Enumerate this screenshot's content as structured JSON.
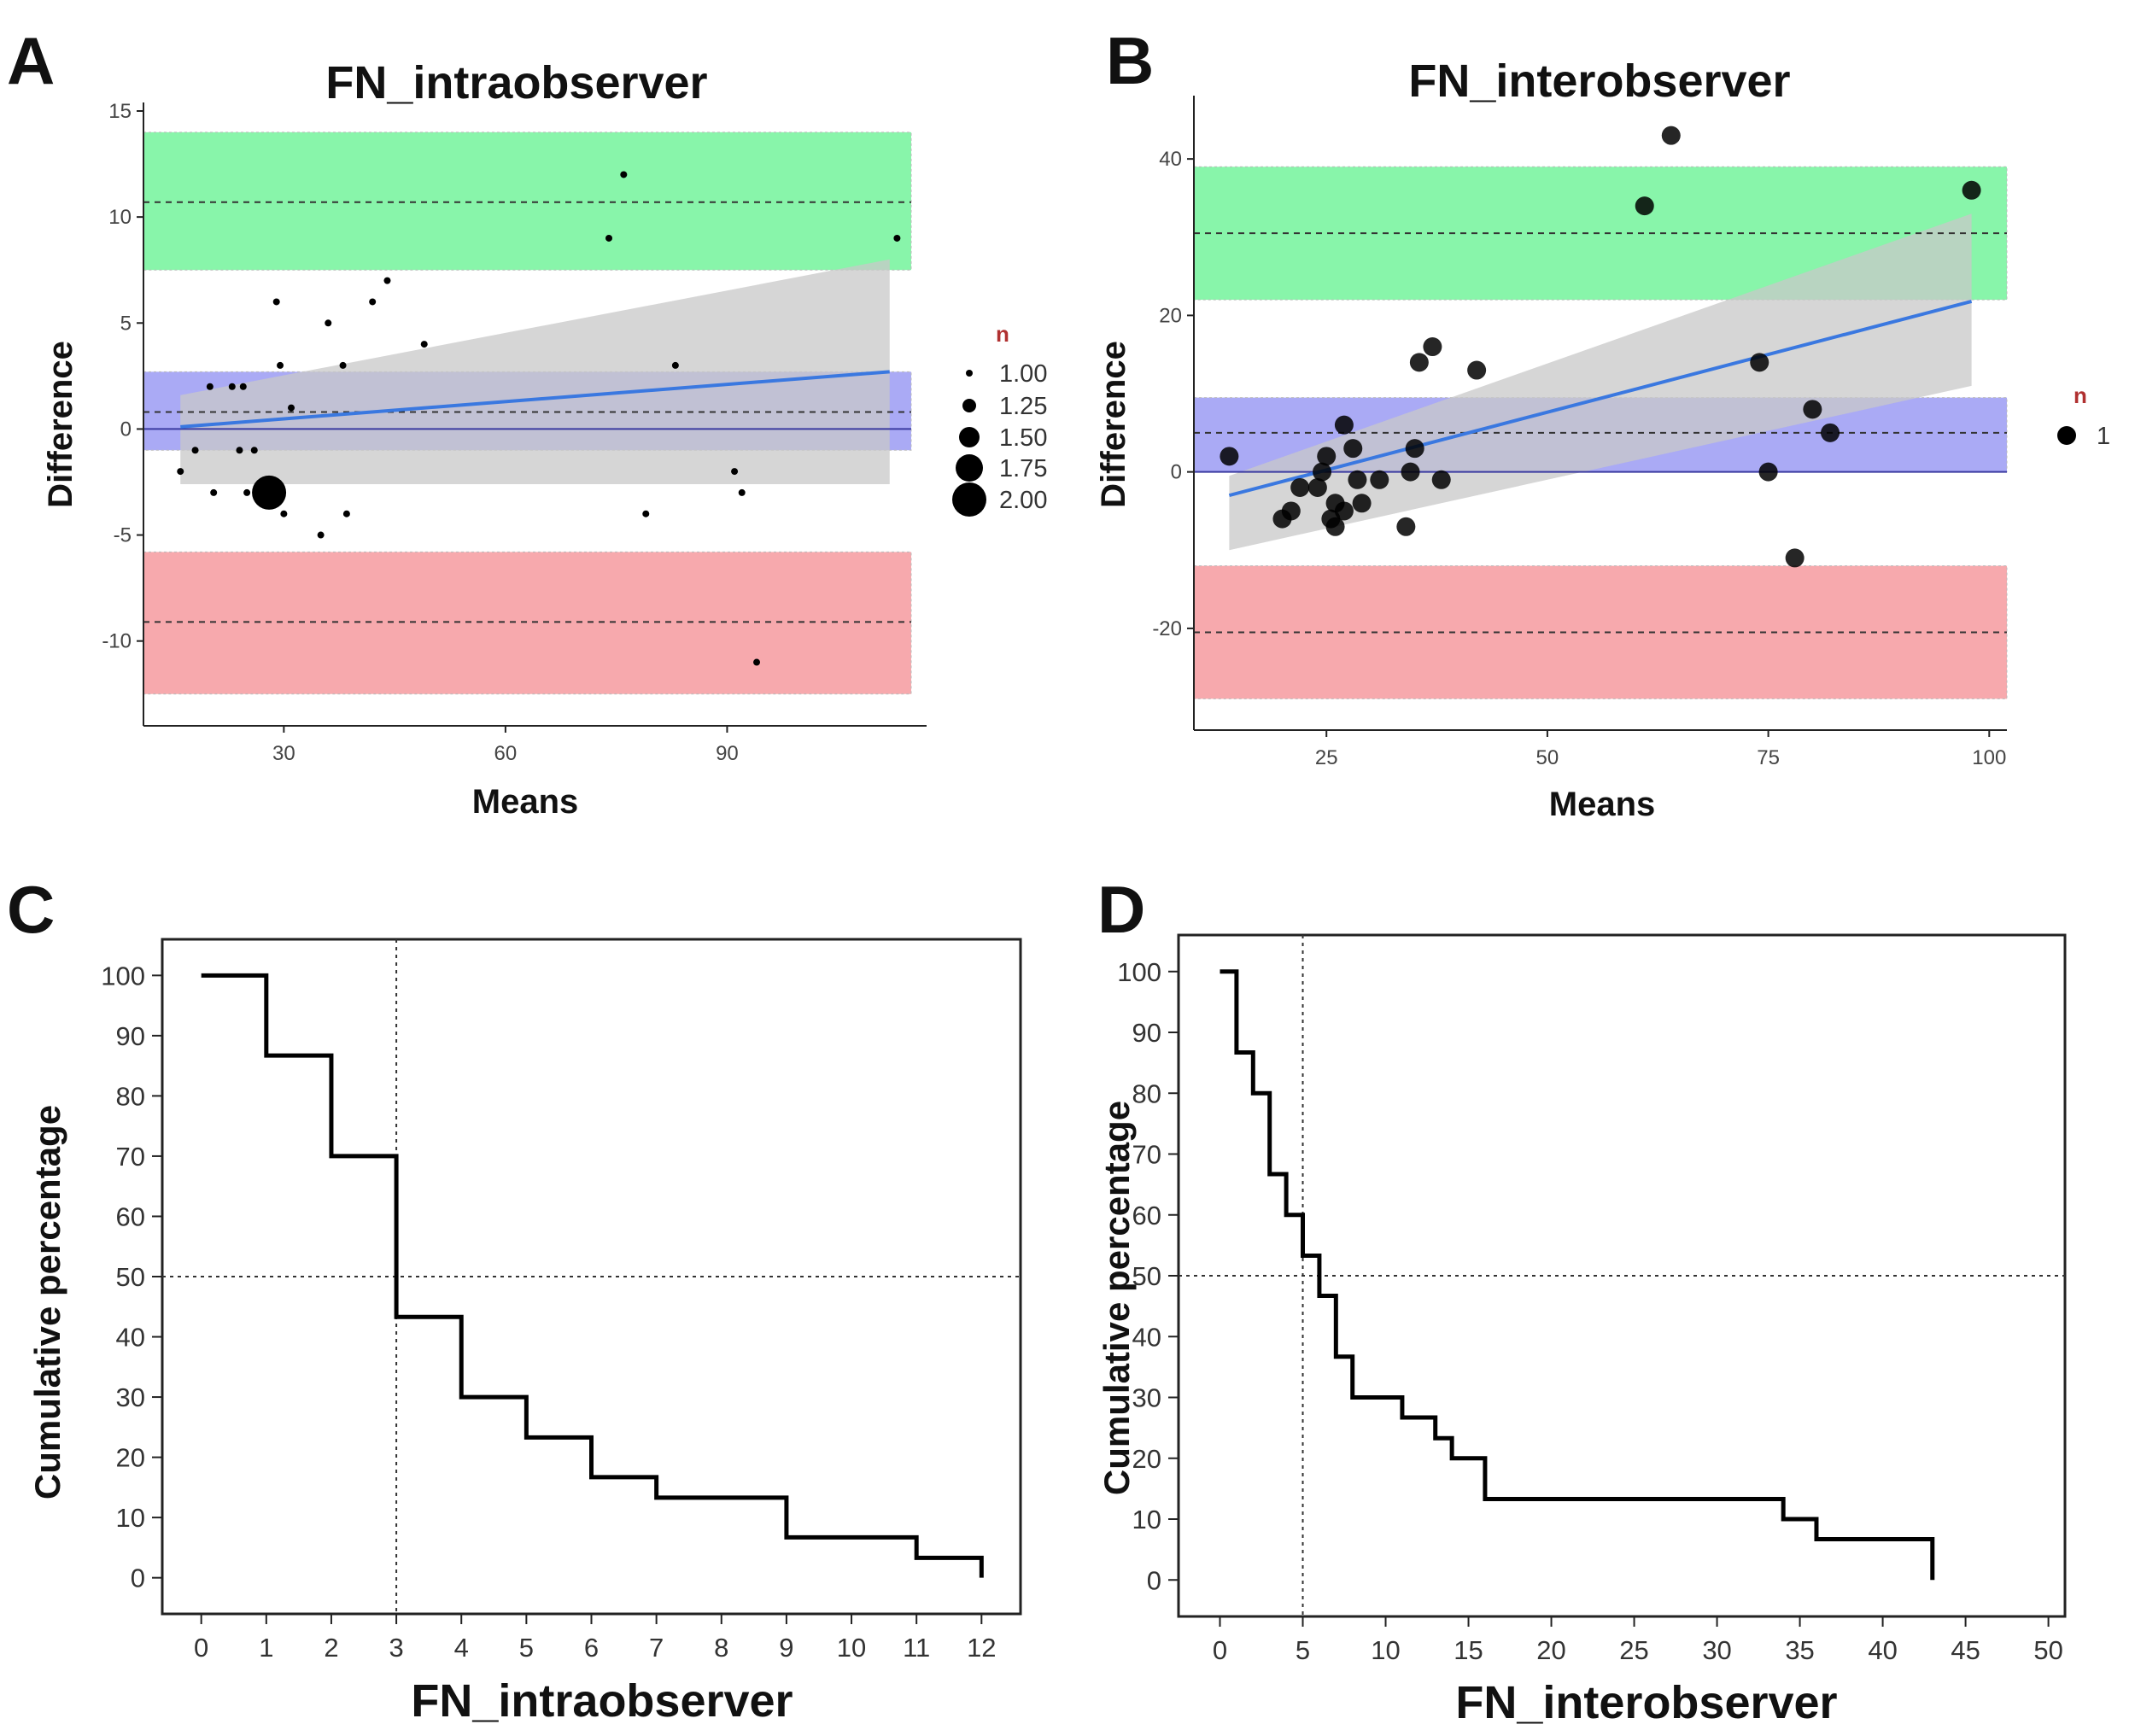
{
  "colors": {
    "upper_band": "#88f5aa",
    "mean_band": "#aaaaf5",
    "lower_band": "#f7a9ad",
    "regression": "#3a78e0",
    "ci": "#c8c8c8",
    "point": "#000000"
  },
  "chart_data": [
    {
      "panel": "A",
      "type": "scatter",
      "title": "FN_intraobserver",
      "xlabel": "Means",
      "ylabel": "Difference",
      "xlim": [
        11,
        117
      ],
      "ylim": [
        -14,
        15
      ],
      "x_ticks": [
        30,
        60,
        90
      ],
      "y_ticks": [
        15,
        10,
        5,
        0,
        -5,
        -10
      ],
      "bands": {
        "upper": {
          "low": 7.5,
          "high": 14,
          "line": 10.7
        },
        "mean": {
          "low": -1,
          "high": 2.7,
          "line": 0.8
        },
        "lower": {
          "low": -12.5,
          "high": -5.8,
          "line": -9.1
        }
      },
      "zero_line": 0,
      "regression": {
        "x": [
          16,
          112
        ],
        "y": [
          0.1,
          2.7
        ]
      },
      "ci_band": {
        "x": [
          16,
          112
        ],
        "upper": [
          1.6,
          8.0
        ],
        "lower": [
          -2.6,
          -2.6
        ]
      },
      "points": [
        {
          "x": 16,
          "y": -2,
          "n": 1
        },
        {
          "x": 18,
          "y": -1,
          "n": 1
        },
        {
          "x": 20,
          "y": 2,
          "n": 1
        },
        {
          "x": 20.5,
          "y": -3,
          "n": 1
        },
        {
          "x": 23,
          "y": 2,
          "n": 1
        },
        {
          "x": 24,
          "y": -1,
          "n": 1
        },
        {
          "x": 24.5,
          "y": 2,
          "n": 1
        },
        {
          "x": 25,
          "y": -3,
          "n": 1
        },
        {
          "x": 26,
          "y": -1,
          "n": 1
        },
        {
          "x": 28,
          "y": -3,
          "n": 2
        },
        {
          "x": 29,
          "y": 6,
          "n": 1
        },
        {
          "x": 29.5,
          "y": 3,
          "n": 1
        },
        {
          "x": 30,
          "y": -4,
          "n": 1
        },
        {
          "x": 31,
          "y": 1,
          "n": 1
        },
        {
          "x": 35,
          "y": -5,
          "n": 1
        },
        {
          "x": 36,
          "y": 5,
          "n": 1
        },
        {
          "x": 38,
          "y": 3,
          "n": 1
        },
        {
          "x": 38.5,
          "y": -4,
          "n": 1
        },
        {
          "x": 42,
          "y": 6,
          "n": 1
        },
        {
          "x": 44,
          "y": 7,
          "n": 1
        },
        {
          "x": 49,
          "y": 4,
          "n": 1
        },
        {
          "x": 74,
          "y": 9,
          "n": 1
        },
        {
          "x": 76,
          "y": 12,
          "n": 1
        },
        {
          "x": 79,
          "y": -4,
          "n": 1
        },
        {
          "x": 83,
          "y": 3,
          "n": 1
        },
        {
          "x": 91,
          "y": -2,
          "n": 1
        },
        {
          "x": 92,
          "y": -3,
          "n": 1
        },
        {
          "x": 94,
          "y": -11,
          "n": 1
        },
        {
          "x": 113,
          "y": 9,
          "n": 1
        }
      ],
      "legend": {
        "title": "n",
        "entries": [
          {
            "label": "1.00",
            "n": 1.0
          },
          {
            "label": "1.25",
            "n": 1.25
          },
          {
            "label": "1.50",
            "n": 1.5
          },
          {
            "label": "1.75",
            "n": 1.75
          },
          {
            "label": "2.00",
            "n": 2.0
          }
        ]
      }
    },
    {
      "panel": "B",
      "type": "scatter",
      "title": "FN_interobserver",
      "xlabel": "Means",
      "ylabel": "Difference",
      "xlim": [
        10,
        102
      ],
      "ylim": [
        -33,
        47
      ],
      "x_ticks": [
        25,
        50,
        75,
        100
      ],
      "y_ticks": [
        40,
        20,
        0,
        -20
      ],
      "bands": {
        "upper": {
          "low": 22,
          "high": 39,
          "line": 30.5
        },
        "mean": {
          "low": 0,
          "high": 9.5,
          "line": 5
        },
        "lower": {
          "low": -29,
          "high": -12,
          "line": -20.5
        }
      },
      "zero_line": 0,
      "regression": {
        "x": [
          14,
          98
        ],
        "y": [
          -3,
          21.8
        ]
      },
      "ci_band": {
        "x": [
          14,
          98
        ],
        "upper": [
          -0.5,
          33
        ],
        "lower": [
          -10,
          11
        ]
      },
      "points": [
        {
          "x": 14,
          "y": 2
        },
        {
          "x": 20,
          "y": -6
        },
        {
          "x": 21,
          "y": -5
        },
        {
          "x": 22,
          "y": -2
        },
        {
          "x": 24,
          "y": -2
        },
        {
          "x": 24.5,
          "y": 0
        },
        {
          "x": 25,
          "y": 2
        },
        {
          "x": 25.5,
          "y": -6
        },
        {
          "x": 26,
          "y": -7
        },
        {
          "x": 26,
          "y": -4
        },
        {
          "x": 27,
          "y": -5
        },
        {
          "x": 27,
          "y": 6
        },
        {
          "x": 28,
          "y": 3
        },
        {
          "x": 28.5,
          "y": -1
        },
        {
          "x": 29,
          "y": -4
        },
        {
          "x": 31,
          "y": -1
        },
        {
          "x": 34,
          "y": -7
        },
        {
          "x": 34.5,
          "y": 0
        },
        {
          "x": 35,
          "y": 3
        },
        {
          "x": 35.5,
          "y": 14
        },
        {
          "x": 37,
          "y": 16
        },
        {
          "x": 38,
          "y": -1
        },
        {
          "x": 42,
          "y": 13
        },
        {
          "x": 61,
          "y": 34
        },
        {
          "x": 64,
          "y": 43
        },
        {
          "x": 74,
          "y": 14
        },
        {
          "x": 75,
          "y": 0
        },
        {
          "x": 78,
          "y": -11
        },
        {
          "x": 80,
          "y": 8
        },
        {
          "x": 82,
          "y": 5
        },
        {
          "x": 98,
          "y": 36
        }
      ],
      "legend": {
        "title": "n",
        "entries": [
          {
            "label": "1",
            "n": 1
          }
        ]
      }
    },
    {
      "panel": "C",
      "type": "line",
      "step": true,
      "xlabel": "FN_intraobserver",
      "ylabel": "Cumulative percentage",
      "xlim": [
        -0.6,
        12.6
      ],
      "ylim": [
        -6,
        106
      ],
      "x_ticks": [
        0,
        1,
        2,
        3,
        4,
        5,
        6,
        7,
        8,
        9,
        10,
        11,
        12
      ],
      "y_ticks": [
        100,
        90,
        80,
        70,
        60,
        50,
        40,
        30,
        20,
        10,
        0
      ],
      "ref_x": 3,
      "ref_y": 50,
      "x": [
        0,
        1,
        2,
        3,
        4,
        5,
        6,
        7,
        8,
        9,
        10,
        11,
        12
      ],
      "y": [
        100,
        86.7,
        70,
        43.3,
        30,
        23.3,
        16.7,
        13.3,
        13.3,
        6.7,
        6.7,
        3.3,
        0
      ]
    },
    {
      "panel": "D",
      "type": "line",
      "step": true,
      "xlabel": "FN_interobserver",
      "ylabel": "Cumulative percentage",
      "xlim": [
        -2.5,
        51
      ],
      "ylim": [
        -6,
        106
      ],
      "x_ticks": [
        0,
        5,
        10,
        15,
        20,
        25,
        30,
        35,
        40,
        45,
        50
      ],
      "y_ticks": [
        100,
        90,
        80,
        70,
        60,
        50,
        40,
        30,
        20,
        10,
        0
      ],
      "ref_x": 5,
      "ref_y": 50,
      "x": [
        0,
        1,
        2,
        3,
        4,
        5,
        6,
        7,
        8,
        11,
        13,
        14,
        16,
        34,
        36,
        43
      ],
      "y": [
        100,
        86.7,
        80,
        66.7,
        60,
        53.3,
        46.7,
        36.7,
        30,
        26.7,
        23.3,
        20,
        13.3,
        10,
        6.7,
        3.3
      ],
      "x_end": 43,
      "y_end": 0
    }
  ]
}
